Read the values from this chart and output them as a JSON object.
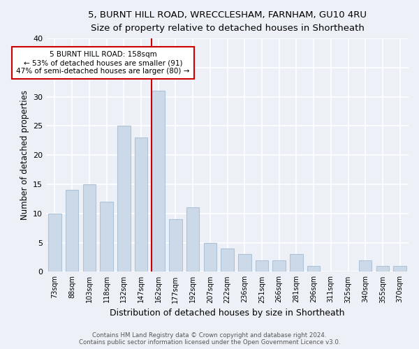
{
  "title_line1": "5, BURNT HILL ROAD, WRECCLESHAM, FARNHAM, GU10 4RU",
  "title_line2": "Size of property relative to detached houses in Shortheath",
  "xlabel": "Distribution of detached houses by size in Shortheath",
  "ylabel": "Number of detached properties",
  "categories": [
    "73sqm",
    "88sqm",
    "103sqm",
    "118sqm",
    "132sqm",
    "147sqm",
    "162sqm",
    "177sqm",
    "192sqm",
    "207sqm",
    "222sqm",
    "236sqm",
    "251sqm",
    "266sqm",
    "281sqm",
    "296sqm",
    "311sqm",
    "325sqm",
    "340sqm",
    "355sqm",
    "370sqm"
  ],
  "values": [
    10,
    14,
    15,
    12,
    25,
    23,
    31,
    9,
    11,
    5,
    4,
    3,
    2,
    2,
    3,
    1,
    0,
    0,
    2,
    1,
    1
  ],
  "bar_color": "#ccd9e8",
  "bar_edge_color": "#aec3d8",
  "marker_line_color": "#cc0000",
  "annotation_line1": "5 BURNT HILL ROAD: 158sqm",
  "annotation_line2": "← 53% of detached houses are smaller (91)",
  "annotation_line3": "47% of semi-detached houses are larger (80) →",
  "annotation_box_color": "#ffffff",
  "annotation_box_edge": "#cc0000",
  "ylim": [
    0,
    40
  ],
  "yticks": [
    0,
    5,
    10,
    15,
    20,
    25,
    30,
    35,
    40
  ],
  "background_color": "#edf1f7",
  "grid_color": "#ffffff",
  "footer_line1": "Contains HM Land Registry data © Crown copyright and database right 2024.",
  "footer_line2": "Contains public sector information licensed under the Open Government Licence v3.0."
}
